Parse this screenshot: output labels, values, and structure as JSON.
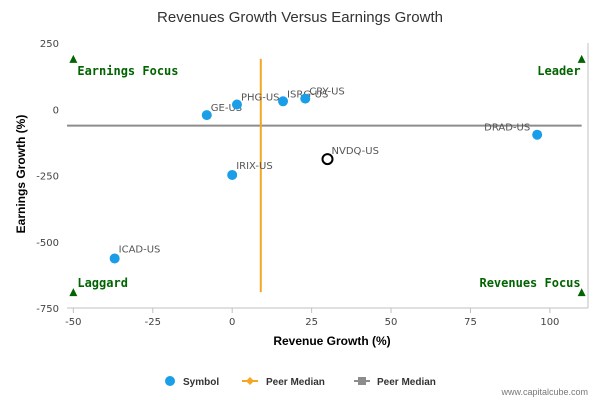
{
  "chart_data": {
    "type": "scatter",
    "title": "Revenues Growth Versus Earnings Growth",
    "xlabel": "Revenue Growth (%)",
    "ylabel": "Earnings Growth (%)",
    "xlim": [
      -52,
      112
    ],
    "ylim": [
      -750,
      250
    ],
    "xticks": [
      -50,
      -25,
      0,
      25,
      50,
      75,
      100
    ],
    "yticks": [
      250,
      0,
      -250,
      -500,
      -750
    ],
    "points": [
      {
        "label": "GE-US",
        "x": -8,
        "y": -22
      },
      {
        "label": "PHG-US",
        "x": 1.5,
        "y": 18
      },
      {
        "label": "ISRG-US",
        "x": 16,
        "y": 30
      },
      {
        "label": "CRY-US",
        "x": 23,
        "y": 40
      },
      {
        "label": "DRAD-US",
        "x": 96,
        "y": -96
      },
      {
        "label": "IRIX-US",
        "x": 0,
        "y": -248
      },
      {
        "label": "ICAD-US",
        "x": -37,
        "y": -563
      }
    ],
    "highlight_point": {
      "label": "NVDQ-US",
      "x": 30,
      "y": -188
    },
    "peer_median_revenue": 9,
    "peer_median_earnings": -62,
    "peer_median_revenue_yrange": [
      190,
      -690
    ],
    "peer_median_earnings_xrange": [
      -52,
      110
    ],
    "corners": {
      "top_left": "Earnings Focus",
      "top_right": "Leader",
      "bottom_left": "Laggard",
      "bottom_right": "Revenues Focus"
    },
    "legend": [
      {
        "name": "Symbol",
        "marker": "circle",
        "color": "#1a9ee8"
      },
      {
        "name": "Peer Median",
        "marker": "diamond",
        "color": "#f5a623"
      },
      {
        "name": "Peer Median",
        "marker": "square",
        "color": "#8c8c8c"
      }
    ],
    "colors": {
      "point": "#1a9ee8",
      "highlight_stroke": "#000000",
      "median_revenue_line": "#f5a623",
      "median_earnings_line": "#8c8c8c",
      "corner_text": "#006400"
    }
  },
  "credit": "www.capitalcube.com"
}
